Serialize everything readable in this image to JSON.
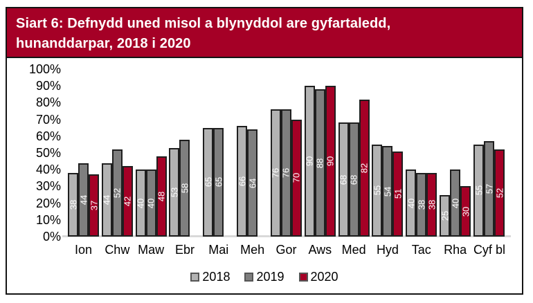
{
  "header": {
    "title_line1": "Siart 6: Defnydd uned misol a blynyddol are gyfartaledd,",
    "title_line2": "hunanddarpar, 2018 i 2020"
  },
  "chart_data": {
    "type": "bar",
    "title": "Siart 6: Defnydd uned misol a blynyddol are gyfartaledd, hunanddarpar, 2018 i 2020",
    "categories": [
      "Ion",
      "Chw",
      "Maw",
      "Ebr",
      "Mai",
      "Meh",
      "Gor",
      "Aws",
      "Med",
      "Hyd",
      "Tac",
      "Rha",
      "Cyf bl"
    ],
    "series": [
      {
        "name": "2018",
        "color": "#b3b3b3",
        "values": [
          38,
          44,
          40,
          53,
          65,
          66,
          76,
          90,
          68,
          55,
          40,
          25,
          55
        ]
      },
      {
        "name": "2019",
        "color": "#7f7f7f",
        "values": [
          44,
          52,
          40,
          58,
          65,
          64,
          76,
          88,
          68,
          54,
          38,
          40,
          57
        ]
      },
      {
        "name": "2020",
        "color": "#a50026",
        "values": [
          37,
          42,
          48,
          null,
          null,
          null,
          70,
          90,
          82,
          51,
          38,
          30,
          52
        ]
      }
    ],
    "y_ticks": [
      "100%",
      "90%",
      "80%",
      "70%",
      "60%",
      "50%",
      "40%",
      "30%",
      "20%",
      "10%",
      "0%"
    ],
    "ylim": [
      0,
      100
    ],
    "xlabel": "",
    "ylabel": "",
    "grid": false,
    "bar_data_labels": true,
    "bar_label_rotation": "vertical",
    "legend_position": "bottom"
  },
  "colors": {
    "header_background": "#a50026",
    "header_text": "#ffffff",
    "frame_border": "#141414",
    "bar_border": "#1f1f1f",
    "axis_baseline": "#d9d9d9",
    "bar_label_text": "#ffffff"
  }
}
